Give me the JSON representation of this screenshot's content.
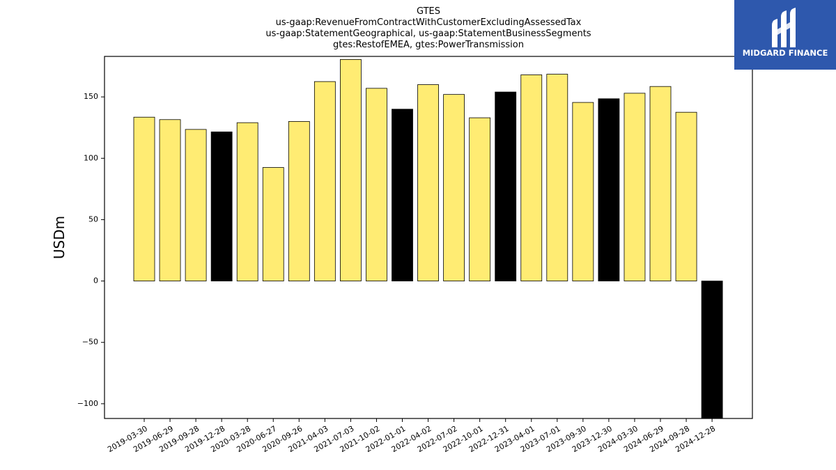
{
  "chart_data": {
    "type": "bar",
    "title_lines": [
      "GTES",
      "us-gaap:RevenueFromContractWithCustomerExcludingAssessedTax",
      "us-gaap:StatementGeographical, us-gaap:StatementBusinessSegments",
      "gtes:RestofEMEA, gtes:PowerTransmission"
    ],
    "ylabel": "USDm",
    "xlabel": "",
    "ylim": [
      -112,
      183
    ],
    "yticks": [
      -100,
      -50,
      0,
      50,
      100,
      150
    ],
    "ytick_labels": [
      "−100",
      "−50",
      "0",
      "50",
      "100",
      "150"
    ],
    "categories": [
      "2019-03-30",
      "2019-06-29",
      "2019-09-28",
      "2019-12-28",
      "2020-03-28",
      "2020-06-27",
      "2020-09-26",
      "2021-04-03",
      "2021-07-03",
      "2021-10-02",
      "2022-01-01",
      "2022-04-02",
      "2022-07-02",
      "2022-10-01",
      "2022-12-31",
      "2023-04-01",
      "2023-07-01",
      "2023-09-30",
      "2023-12-30",
      "2024-03-30",
      "2024-06-29",
      "2024-09-28",
      "2024-12-28"
    ],
    "values": [
      133.5,
      131.5,
      123.5,
      121.5,
      129.0,
      92.5,
      130.0,
      162.5,
      180.5,
      157.0,
      140.0,
      160.0,
      152.0,
      133.0,
      154.0,
      168.0,
      168.5,
      145.5,
      148.5,
      153.0,
      158.5,
      137.5,
      -115.0
    ],
    "bar_colors": [
      "#ffec73",
      "#ffec73",
      "#ffec73",
      "#000000",
      "#ffec73",
      "#ffec73",
      "#ffec73",
      "#ffec73",
      "#ffec73",
      "#ffec73",
      "#000000",
      "#ffec73",
      "#ffec73",
      "#ffec73",
      "#000000",
      "#ffec73",
      "#ffec73",
      "#ffec73",
      "#000000",
      "#ffec73",
      "#ffec73",
      "#ffec73",
      "#000000"
    ],
    "grid": false,
    "legend": "none"
  },
  "logo": {
    "text": "MIDGARD FINANCE",
    "background_color": "#2e58ad",
    "mark_color": "#ffffff"
  }
}
